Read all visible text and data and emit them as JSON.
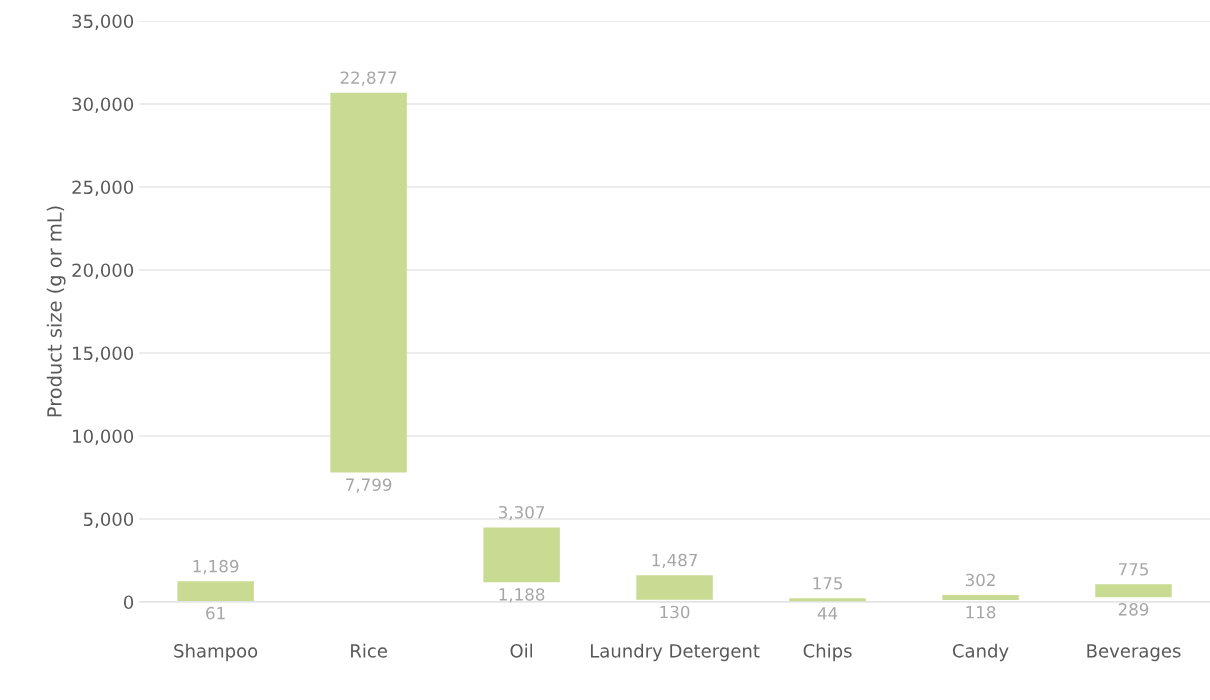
{
  "chart_data": {
    "type": "bar",
    "ylabel": "Product size (g or mL)",
    "categories": [
      "Shampoo",
      "Rice",
      "Oil",
      "Laundry Detergent",
      "Chips",
      "Candy",
      "Beverages"
    ],
    "base": [
      61,
      7799,
      1188,
      130,
      44,
      118,
      289
    ],
    "values": [
      1189,
      22877,
      3307,
      1487,
      175,
      302,
      775
    ],
    "value_labels": [
      "1,189",
      "22,877",
      "3,307",
      "1,487",
      "175",
      "302",
      "775"
    ],
    "annotations": [
      {
        "text": "61",
        "x": "Shampoo",
        "y": 61
      },
      {
        "text": "7,799",
        "x": "Rice",
        "y": 7799
      },
      {
        "text": "1,188",
        "x": "Oil",
        "y": 1188
      },
      {
        "text": "130",
        "x": "Laundry Detergent",
        "y": 130
      },
      {
        "text": "44",
        "x": "Chips",
        "y": 44
      },
      {
        "text": "118",
        "x": "Candy",
        "y": 118
      },
      {
        "text": "289",
        "x": "Beverages",
        "y": 289
      }
    ],
    "color": "#c9db92",
    "ylim": [
      0,
      35000
    ],
    "yticks": [
      {
        "value": 0,
        "label": "0"
      },
      {
        "value": 5000,
        "label": "5,000"
      },
      {
        "value": 10000,
        "label": "10,000"
      },
      {
        "value": 15000,
        "label": "15,000"
      },
      {
        "value": 20000,
        "label": "20,000"
      },
      {
        "value": 25000,
        "label": "25,000"
      },
      {
        "value": 30000,
        "label": "30,000"
      },
      {
        "value": 35000,
        "label": "35,000"
      }
    ],
    "grid": "y"
  }
}
